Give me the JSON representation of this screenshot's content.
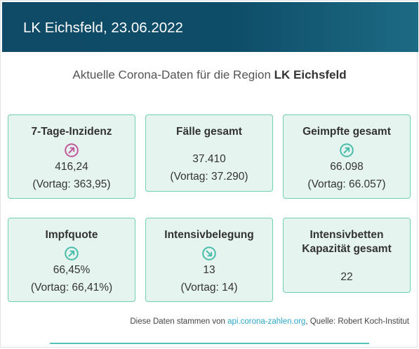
{
  "header": {
    "title": "LK Eichsfeld, 23.06.2022"
  },
  "intro": {
    "prefix": "Aktuelle Corona-Daten für die Region",
    "region": "LK Eichsfeld"
  },
  "cards": {
    "inzidenz": {
      "title": "7-Tage-Inzidenz",
      "value": "416,24",
      "previous": "(Vortag: 363,95)",
      "trend": "up",
      "trend_icon": "trend-up-icon",
      "trend_color": "#c0599a"
    },
    "faelle": {
      "title": "Fälle gesamt",
      "value": "37.410",
      "previous": "(Vortag: 37.290)"
    },
    "geimpfte": {
      "title": "Geimpfte gesamt",
      "value": "66.098",
      "previous": "(Vortag: 66.057)",
      "trend": "up",
      "trend_icon": "trend-up-icon",
      "trend_color": "#49bdaa"
    },
    "impfquote": {
      "title": "Impfquote",
      "value": "66,45%",
      "previous": "(Vortag: 66,41%)",
      "trend": "up",
      "trend_icon": "trend-up-icon",
      "trend_color": "#49bdaa"
    },
    "intensiv": {
      "title": "Intensivbelegung",
      "value": "13",
      "previous": "(Vortag: 14)",
      "trend": "down",
      "trend_icon": "trend-down-icon",
      "trend_color": "#49bdaa"
    },
    "kapazitaet": {
      "title_line1": "Intensivbetten",
      "title_line2": "Kapazität gesamt",
      "value": "22"
    }
  },
  "footer": {
    "prefix": "Diese Daten stammen von",
    "link_text": "api.corona-zahlen.org",
    "suffix": ", Quelle: Robert Koch-Institut"
  },
  "colors": {
    "header_bg": "#0e4d68",
    "card_bg": "#e6f4ef",
    "card_border": "#6fd0b6",
    "link": "#2aa8c4"
  }
}
